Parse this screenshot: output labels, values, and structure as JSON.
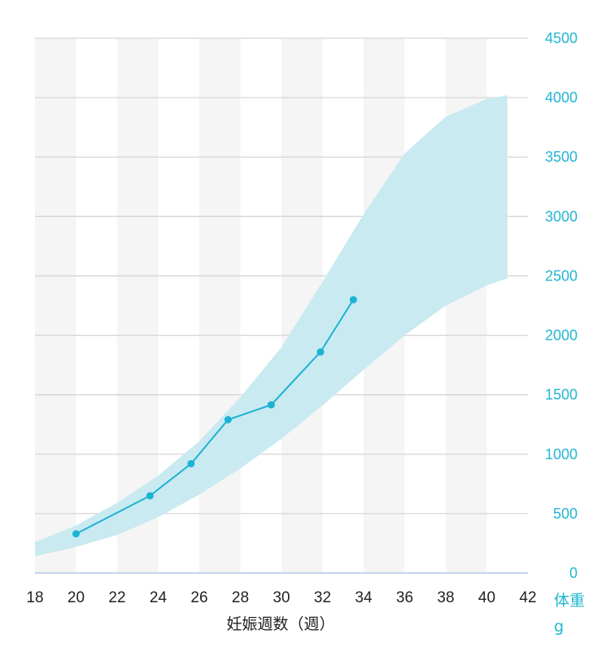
{
  "chart_data": {
    "type": "line",
    "xlabel": "妊娠週数（週）",
    "ylabel": "体重",
    "yunit": "g",
    "xlim": [
      18,
      42
    ],
    "ylim": [
      0,
      4500
    ],
    "x_ticks": [
      18,
      20,
      22,
      24,
      26,
      28,
      30,
      32,
      34,
      36,
      38,
      40,
      42
    ],
    "y_ticks": [
      0,
      500,
      1000,
      1500,
      2000,
      2500,
      3000,
      3500,
      4000,
      4500
    ],
    "grid": true,
    "series": [
      {
        "type": "line",
        "x": [
          20,
          23.6,
          25.6,
          27.4,
          29.5,
          31.9,
          33.5
        ],
        "y": [
          330,
          650,
          920,
          1290,
          1415,
          1860,
          2300
        ]
      }
    ],
    "band": {
      "x": [
        18,
        20,
        22,
        24,
        26,
        28,
        30,
        32,
        34,
        36,
        38,
        40,
        41
      ],
      "upper": [
        260,
        400,
        590,
        820,
        1110,
        1480,
        1900,
        2450,
        3020,
        3530,
        3840,
        3990,
        4020
      ],
      "lower": [
        140,
        220,
        320,
        470,
        660,
        880,
        1130,
        1410,
        1710,
        2000,
        2250,
        2420,
        2480
      ]
    },
    "colors": {
      "line": "#1cb3d3",
      "band": "#c9eaf1",
      "axis_text": "#23b6d2",
      "stripe": "#f5f5f5",
      "grid": "#d5d5d5",
      "baseline": "#b4c9e6"
    }
  }
}
